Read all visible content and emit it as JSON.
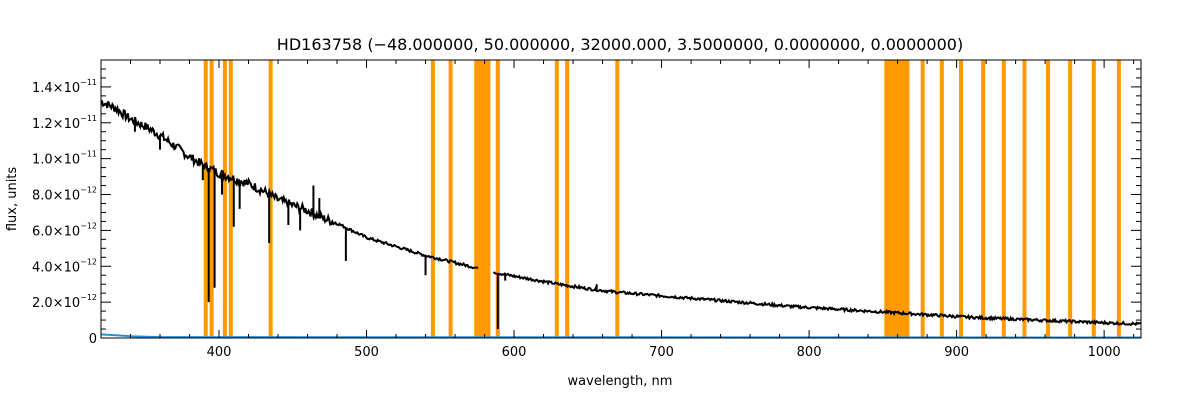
{
  "chart_data": {
    "type": "line",
    "title": "HD163758   (−48.000000, 50.000000, 32000.000, 3.5000000, 0.0000000, 0.0000000)",
    "xlabel": "wavelength, nm",
    "ylabel": "flux, units",
    "xlim": [
      320,
      1025
    ],
    "ylim": [
      0,
      1.55e-11
    ],
    "grid": false,
    "x_ticks": [
      {
        "value": 400,
        "label": "400"
      },
      {
        "value": 500,
        "label": "500"
      },
      {
        "value": 600,
        "label": "600"
      },
      {
        "value": 700,
        "label": "700"
      },
      {
        "value": 800,
        "label": "800"
      },
      {
        "value": 900,
        "label": "900"
      },
      {
        "value": 1000,
        "label": "1000"
      }
    ],
    "y_ticks": [
      {
        "value": 0,
        "mantissa": "0",
        "exponent": ""
      },
      {
        "value": 2e-12,
        "mantissa": "2.0×10",
        "exponent": "−12"
      },
      {
        "value": 4e-12,
        "mantissa": "4.0×10",
        "exponent": "−12"
      },
      {
        "value": 6e-12,
        "mantissa": "6.0×10",
        "exponent": "−12"
      },
      {
        "value": 8e-12,
        "mantissa": "8.0×10",
        "exponent": "−12"
      },
      {
        "value": 1e-11,
        "mantissa": "1.0×10",
        "exponent": "−11"
      },
      {
        "value": 1.2e-11,
        "mantissa": "1.2×10",
        "exponent": "−11"
      },
      {
        "value": 1.4e-11,
        "mantissa": "1.4×10",
        "exponent": "−11"
      }
    ],
    "series": [
      {
        "color": "#000000",
        "continuum_x": [
          320,
          330,
          340,
          350,
          360,
          370,
          380,
          390,
          400,
          410,
          420,
          430,
          440,
          450,
          460,
          470,
          480,
          500,
          520,
          540,
          560,
          575,
          590,
          610,
          630,
          650,
          670,
          700,
          730,
          760,
          790,
          820,
          850,
          880,
          910,
          940,
          970,
          1000,
          1025
        ],
        "continuum_y": [
          1.32e-11,
          1.28e-11,
          1.22e-11,
          1.18e-11,
          1.13e-11,
          1.07e-11,
          1.01e-11,
          9.6e-12,
          9.2e-12,
          8.9e-12,
          8.6e-12,
          8.2e-12,
          7.7e-12,
          7.4e-12,
          7.1e-12,
          6.7e-12,
          6.4e-12,
          5.6e-12,
          5.1e-12,
          4.6e-12,
          4.2e-12,
          3.9e-12,
          3.6e-12,
          3.3e-12,
          3e-12,
          2.75e-12,
          2.55e-12,
          2.35e-12,
          2.15e-12,
          1.95e-12,
          1.75e-12,
          1.6e-12,
          1.45e-12,
          1.3e-12,
          1.15e-12,
          1.05e-12,
          9.5e-13,
          8.5e-13,
          7.8e-13
        ],
        "absorption_lines": [
          {
            "x": 343,
            "y": 1.15e-11
          },
          {
            "x": 350,
            "y": 1.18e-11
          },
          {
            "x": 360,
            "y": 1.05e-11
          },
          {
            "x": 376,
            "y": 1.03e-11
          },
          {
            "x": 383,
            "y": 1e-11
          },
          {
            "x": 389,
            "y": 8.8e-12
          },
          {
            "x": 393,
            "y": 2e-12
          },
          {
            "x": 397,
            "y": 2.8e-12
          },
          {
            "x": 402,
            "y": 8e-12
          },
          {
            "x": 410,
            "y": 6.2e-12
          },
          {
            "x": 414,
            "y": 7.2e-12
          },
          {
            "x": 434,
            "y": 5.3e-12
          },
          {
            "x": 447,
            "y": 6.3e-12
          },
          {
            "x": 455,
            "y": 6e-12
          },
          {
            "x": 486,
            "y": 4.3e-12
          },
          {
            "x": 540,
            "y": 3.5e-12
          },
          {
            "x": 589,
            "y": 5e-13
          },
          {
            "x": 594,
            "y": 3.2e-12
          }
        ],
        "emission_lines": [
          {
            "x": 464,
            "y": 8.5e-12
          },
          {
            "x": 468,
            "y": 7.8e-12
          },
          {
            "x": 656,
            "y": 3e-12
          }
        ],
        "gap": [
          576,
          586
        ]
      },
      {
        "color": "#1f8fe0",
        "description": "error",
        "x": [
          320,
          340,
          360,
          1025
        ],
        "y": [
          2e-13,
          1e-13,
          5e-14,
          3e-14
        ]
      }
    ],
    "masked_regions": {
      "color": "#ff9900",
      "lines": [
        391,
        395,
        404,
        408,
        435,
        545,
        557,
        589,
        629,
        636,
        670,
        877,
        890,
        903,
        918,
        932,
        946,
        962,
        977,
        993,
        1010
      ],
      "bands": [
        [
          573,
          584
        ],
        [
          851,
          868
        ]
      ]
    }
  }
}
